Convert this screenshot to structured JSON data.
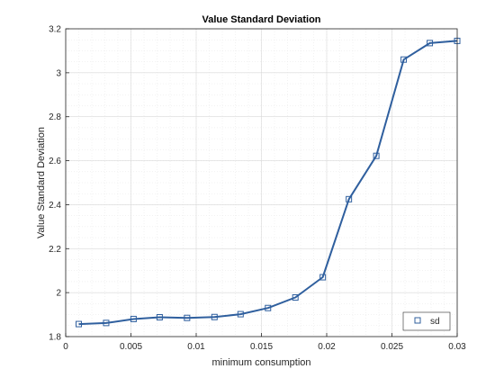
{
  "chart_data": {
    "type": "line",
    "title": "Value Standard Deviation",
    "xlabel": "minimum consumption",
    "ylabel": "Value Standard Deviation",
    "xlim": [
      0,
      0.03
    ],
    "ylim": [
      1.8,
      3.2
    ],
    "x_ticks": [
      0,
      0.005,
      0.01,
      0.015,
      0.02,
      0.025,
      0.03
    ],
    "x_tick_labels": [
      "0",
      "0.005",
      "0.01",
      "0.015",
      "0.02",
      "0.025",
      "0.03"
    ],
    "y_ticks": [
      1.8,
      2,
      2.2,
      2.4,
      2.6,
      2.8,
      3,
      3.2
    ],
    "y_tick_labels": [
      "1.8",
      "2",
      "2.2",
      "2.4",
      "2.6",
      "2.8",
      "3",
      "3.2"
    ],
    "grid": true,
    "legend_position": "bottom-right",
    "series": [
      {
        "name": "sd",
        "marker": "square",
        "color": "#2f5f9e",
        "x": [
          0.001,
          0.0031,
          0.0052,
          0.0072,
          0.0093,
          0.0114,
          0.0134,
          0.0155,
          0.0176,
          0.0197,
          0.0217,
          0.0238,
          0.0259,
          0.0279,
          0.03
        ],
        "y": [
          1.857,
          1.862,
          1.88,
          1.888,
          1.885,
          1.889,
          1.902,
          1.93,
          1.978,
          2.07,
          2.425,
          2.622,
          3.06,
          3.135,
          3.145
        ]
      }
    ]
  }
}
